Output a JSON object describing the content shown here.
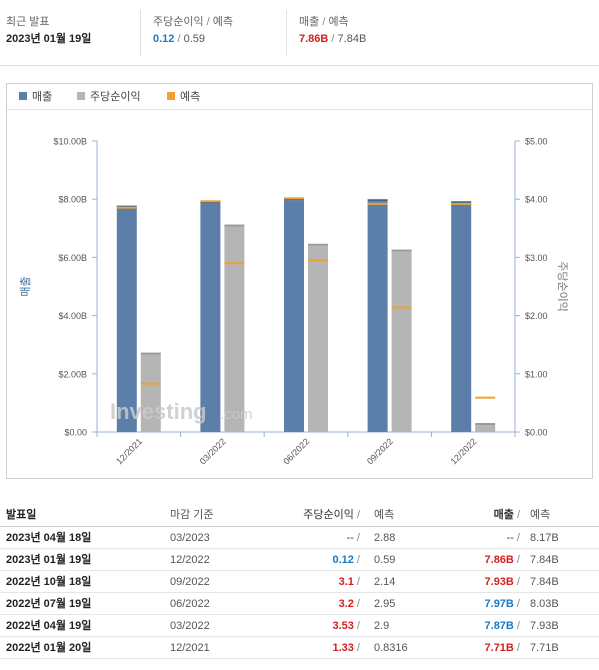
{
  "summary": {
    "latest_label": "최근 발표",
    "latest_date": "2023년 01월 19일",
    "eps_label": "주당순이익",
    "eps_forecast_label": "예측",
    "eps_actual": "0.12",
    "eps_forecast": "0.59",
    "rev_label": "매출",
    "rev_forecast_label": "예측",
    "rev_actual": "7.86B",
    "rev_forecast": "7.84B"
  },
  "legend": {
    "revenue": "매출",
    "eps": "주당순이익",
    "forecast": "예측"
  },
  "colors": {
    "revenue": "#5b7fa8",
    "eps": "#b5b5b5",
    "forecast": "#f0a22e",
    "up": "#d21f1f",
    "down": "#1a7bc4"
  },
  "chart_data": {
    "type": "bar",
    "categories": [
      "12/2021",
      "03/2022",
      "06/2022",
      "09/2022",
      "12/2022"
    ],
    "series": [
      {
        "name": "매출",
        "axis": "left",
        "values": [
          7.71,
          7.87,
          7.97,
          7.93,
          7.86
        ]
      },
      {
        "name": "주당순이익",
        "axis": "right",
        "values": [
          1.33,
          3.53,
          3.2,
          3.1,
          0.12
        ]
      },
      {
        "name": "예측",
        "type": "marker",
        "axis": "left",
        "values": [
          7.71,
          7.93,
          8.03,
          7.84,
          7.84
        ]
      },
      {
        "name": "예측",
        "type": "marker",
        "axis": "right",
        "values": [
          0.8316,
          2.9,
          2.95,
          2.14,
          0.59
        ]
      }
    ],
    "ylabel": "매출",
    "y2label": "주당순이익",
    "ylim": [
      0,
      10
    ],
    "y2lim": [
      0,
      5
    ],
    "yticks": [
      "$0.00",
      "$2.00B",
      "$4.00B",
      "$6.00B",
      "$8.00B",
      "$10.00B"
    ],
    "y2ticks": [
      "$0.00",
      "$1.00",
      "$2.00",
      "$3.00",
      "$4.00",
      "$5.00"
    ],
    "watermark": "Investing",
    "watermark_suffix": ".com",
    "legend_position": "top-left",
    "grid": false
  },
  "table": {
    "headers": {
      "date": "발표일",
      "period": "마감 기준",
      "eps": "주당순이익",
      "eps_forecast": "예측",
      "rev": "매출",
      "rev_forecast": "예측"
    },
    "rows": [
      {
        "date": "2023년 04월 18일",
        "period": "03/2023",
        "eps": "--",
        "eps_forecast": "2.88",
        "rev": "--",
        "rev_forecast": "8.17B",
        "eps_dir": "none",
        "rev_dir": "none"
      },
      {
        "date": "2023년 01월 19일",
        "period": "12/2022",
        "eps": "0.12",
        "eps_forecast": "0.59",
        "rev": "7.86B",
        "rev_forecast": "7.84B",
        "eps_dir": "down",
        "rev_dir": "up"
      },
      {
        "date": "2022년 10월 18일",
        "period": "09/2022",
        "eps": "3.1",
        "eps_forecast": "2.14",
        "rev": "7.93B",
        "rev_forecast": "7.84B",
        "eps_dir": "up",
        "rev_dir": "up"
      },
      {
        "date": "2022년 07월 19일",
        "period": "06/2022",
        "eps": "3.2",
        "eps_forecast": "2.95",
        "rev": "7.97B",
        "rev_forecast": "8.03B",
        "eps_dir": "up",
        "rev_dir": "down"
      },
      {
        "date": "2022년 04월 19일",
        "period": "03/2022",
        "eps": "3.53",
        "eps_forecast": "2.9",
        "rev": "7.87B",
        "rev_forecast": "7.93B",
        "eps_dir": "up",
        "rev_dir": "down"
      },
      {
        "date": "2022년 01월 20일",
        "period": "12/2021",
        "eps": "1.33",
        "eps_forecast": "0.8316",
        "rev": "7.71B",
        "rev_forecast": "7.71B",
        "eps_dir": "up",
        "rev_dir": "up"
      }
    ]
  }
}
